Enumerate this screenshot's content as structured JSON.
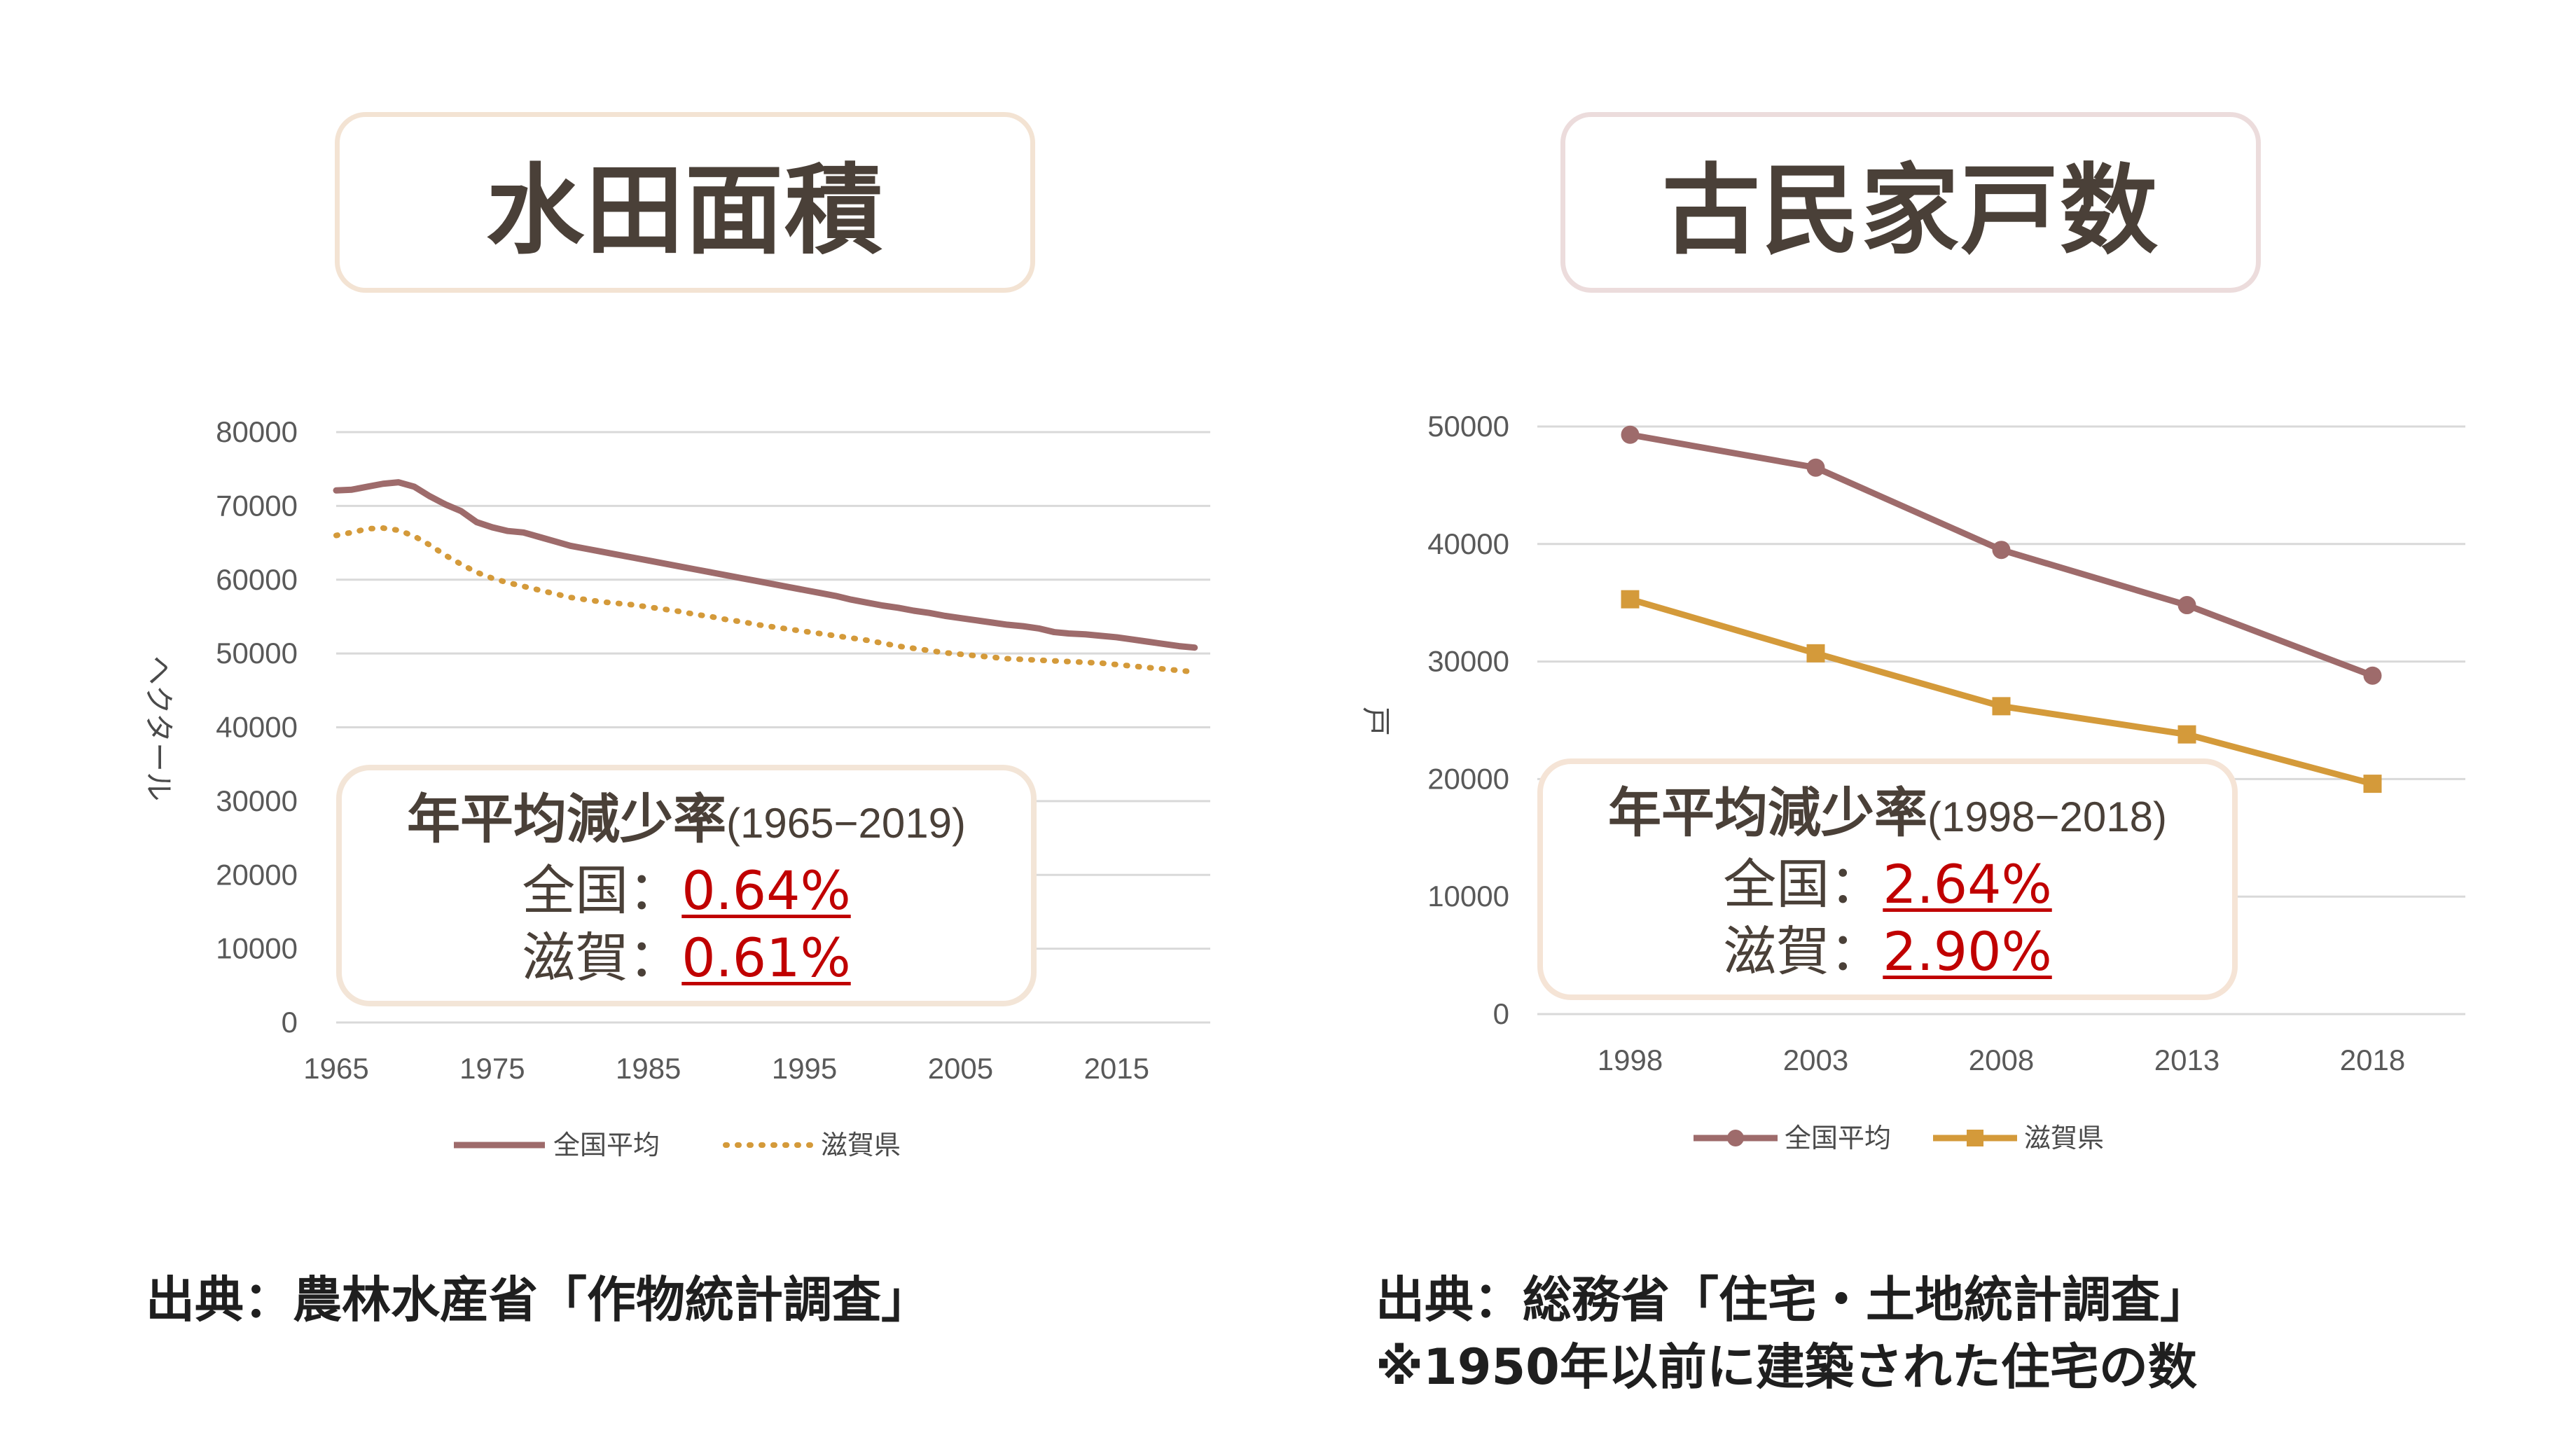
{
  "left_panel": {
    "title": "水田面積",
    "rate_box": {
      "title": "年平均減少率",
      "period": "(1965−2019)",
      "national_label": "全国：",
      "national_value": "0.64%",
      "shiga_label": "滋賀：",
      "shiga_value": "0.61%"
    },
    "source": "出典：農林水産省「作物統計調査」"
  },
  "right_panel": {
    "title": "古民家戸数",
    "rate_box": {
      "title": "年平均減少率",
      "period": "(1998−2018)",
      "national_label": "全国：",
      "national_value": "2.64%",
      "shiga_label": "滋賀：",
      "shiga_value": "2.90%"
    },
    "source_line1": "出典：総務省「住宅・土地統計調査」",
    "source_line2": "※1950年以前に建築された住宅の数"
  },
  "colors": {
    "national": "#9e6b6b",
    "shiga": "#d49a3a",
    "grid": "#d9d9d9",
    "rate_value": "#c00000"
  },
  "chart_data": [
    {
      "type": "line",
      "title": "水田面積",
      "xlabel": "",
      "ylabel": "ヘクタール",
      "ylim": [
        0,
        80000
      ],
      "xlim": [
        1965,
        2021
      ],
      "y_ticks": [
        "0",
        "10000",
        "20000",
        "30000",
        "40000",
        "50000",
        "60000",
        "70000",
        "80000"
      ],
      "x_ticks": [
        "1965",
        "1975",
        "1985",
        "1995",
        "2005",
        "2015"
      ],
      "legend_position": "bottom",
      "series": [
        {
          "name": "全国平均",
          "style": "solid",
          "x": [
            1965,
            1966,
            1967,
            1968,
            1969,
            1970,
            1971,
            1972,
            1973,
            1974,
            1975,
            1976,
            1977,
            1978,
            1979,
            1980,
            1981,
            1982,
            1983,
            1984,
            1985,
            1986,
            1987,
            1988,
            1989,
            1990,
            1991,
            1992,
            1993,
            1994,
            1995,
            1996,
            1997,
            1998,
            1999,
            2000,
            2001,
            2002,
            2003,
            2004,
            2005,
            2006,
            2007,
            2008,
            2009,
            2010,
            2011,
            2012,
            2013,
            2014,
            2015,
            2016,
            2017,
            2018,
            2019,
            2020
          ],
          "values": [
            72100,
            72200,
            72600,
            73000,
            73200,
            72600,
            71300,
            70200,
            69300,
            67800,
            67100,
            66600,
            66400,
            65800,
            65200,
            64600,
            64200,
            63800,
            63400,
            63000,
            62600,
            62200,
            61800,
            61400,
            61000,
            60600,
            60200,
            59800,
            59400,
            59000,
            58600,
            58200,
            57800,
            57300,
            56900,
            56500,
            56200,
            55800,
            55500,
            55100,
            54800,
            54500,
            54200,
            53900,
            53700,
            53400,
            52900,
            52700,
            52600,
            52400,
            52200,
            51900,
            51600,
            51300,
            51000,
            50800
          ]
        },
        {
          "name": "滋賀県",
          "style": "dotted",
          "x": [
            1965,
            1966,
            1967,
            1968,
            1969,
            1970,
            1971,
            1972,
            1973,
            1974,
            1975,
            1976,
            1977,
            1978,
            1979,
            1980,
            1981,
            1982,
            1983,
            1984,
            1985,
            1986,
            1987,
            1988,
            1989,
            1990,
            1991,
            1992,
            1993,
            1994,
            1995,
            1996,
            1997,
            1998,
            1999,
            2000,
            2001,
            2002,
            2003,
            2004,
            2005,
            2006,
            2007,
            2008,
            2009,
            2010,
            2011,
            2012,
            2013,
            2014,
            2015,
            2016,
            2017,
            2018,
            2019,
            2020
          ],
          "values": [
            66000,
            66400,
            66900,
            67000,
            66700,
            65900,
            64700,
            63300,
            62100,
            61000,
            60200,
            59600,
            59100,
            58600,
            58100,
            57600,
            57300,
            57000,
            56800,
            56600,
            56300,
            56000,
            55700,
            55300,
            55000,
            54600,
            54300,
            53900,
            53600,
            53300,
            53000,
            52700,
            52400,
            52100,
            51800,
            51400,
            51000,
            50700,
            50400,
            50100,
            49900,
            49700,
            49500,
            49300,
            49200,
            49100,
            49000,
            48900,
            48800,
            48700,
            48500,
            48300,
            48100,
            47900,
            47700,
            47500
          ]
        }
      ]
    },
    {
      "type": "line",
      "title": "古民家戸数",
      "xlabel": "",
      "ylabel": "戸",
      "ylim": [
        0,
        50000
      ],
      "y_ticks": [
        "0",
        "10000",
        "20000",
        "30000",
        "40000",
        "50000"
      ],
      "categories": [
        "1998",
        "2003",
        "2008",
        "2013",
        "2018"
      ],
      "legend_position": "bottom",
      "series": [
        {
          "name": "全国平均",
          "marker": "circle",
          "values": [
            49300,
            46500,
            39500,
            34800,
            28800
          ]
        },
        {
          "name": "滋賀県",
          "marker": "square",
          "values": [
            35300,
            30700,
            26200,
            23800,
            19600
          ]
        }
      ]
    }
  ]
}
